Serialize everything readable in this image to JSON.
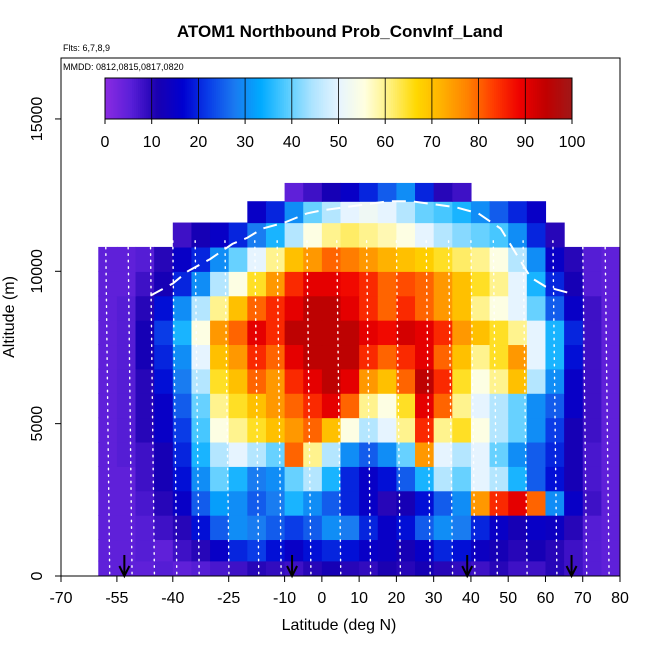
{
  "chart_data": {
    "type": "heatmap",
    "title": "ATOM1 Northbound Prob_ConvInf_Land",
    "subtitle_flights": "Flts: 6,7,8,9",
    "subtitle_dates": "MMDD: 0812,0815,0817,0820",
    "xlabel": "Latitude (deg N)",
    "ylabel": "Altitude (m)",
    "xlim": [
      -70,
      80
    ],
    "ylim": [
      0,
      17000
    ],
    "x_ticks": [
      -70,
      -55,
      -40,
      -25,
      -10,
      0,
      10,
      20,
      30,
      40,
      50,
      60,
      70,
      80
    ],
    "x_tick_labels": [
      "-70",
      "-55",
      "-40",
      "-25",
      "-10",
      "0",
      "10",
      "20",
      "30",
      "40",
      "50",
      "60",
      "70",
      "80"
    ],
    "y_ticks": [
      0,
      5000,
      10000,
      15000
    ],
    "y_tick_labels": [
      "0",
      "5000",
      "10000",
      "15000"
    ],
    "colorbar": {
      "range": [
        0,
        100
      ],
      "ticks": [
        0,
        10,
        20,
        30,
        40,
        50,
        60,
        70,
        80,
        90,
        100
      ],
      "tick_labels": [
        "0",
        "10",
        "20",
        "30",
        "40",
        "50",
        "60",
        "70",
        "80",
        "90",
        "100"
      ],
      "colors": [
        "#8b2be2",
        "#5a1fd8",
        "#1a00b0",
        "#0000d0",
        "#0a3ee8",
        "#1a7af0",
        "#00aaff",
        "#55ccff",
        "#aee4ff",
        "#e6f4ff",
        "#ffffe0",
        "#fff07a",
        "#ffd800",
        "#ffb000",
        "#ff8000",
        "#ff3a00",
        "#ee0000",
        "#c00000",
        "#a01818"
      ]
    },
    "grid_z_rows_bottom_to_top": [
      [
        5,
        5,
        5,
        6,
        5,
        6,
        7,
        8,
        10,
        9,
        8,
        10,
        12,
        10,
        9,
        11,
        10,
        12,
        10,
        9,
        8,
        10,
        8,
        8,
        10,
        8,
        6,
        5
      ],
      [
        5,
        5,
        6,
        5,
        8,
        10,
        15,
        20,
        22,
        18,
        15,
        18,
        20,
        18,
        15,
        14,
        12,
        15,
        20,
        18,
        14,
        12,
        10,
        12,
        10,
        8,
        6,
        5
      ],
      [
        5,
        5,
        6,
        8,
        10,
        18,
        25,
        30,
        28,
        25,
        22,
        25,
        30,
        28,
        20,
        15,
        18,
        25,
        30,
        28,
        20,
        15,
        12,
        15,
        14,
        10,
        6,
        5
      ],
      [
        5,
        5,
        7,
        10,
        15,
        25,
        32,
        30,
        25,
        28,
        35,
        30,
        25,
        20,
        15,
        10,
        12,
        18,
        25,
        30,
        75,
        85,
        90,
        80,
        30,
        15,
        8,
        5
      ],
      [
        5,
        5,
        8,
        12,
        18,
        30,
        40,
        35,
        28,
        30,
        40,
        45,
        35,
        20,
        15,
        18,
        25,
        35,
        45,
        40,
        50,
        45,
        35,
        25,
        18,
        12,
        7,
        5
      ],
      [
        5,
        6,
        8,
        12,
        20,
        35,
        45,
        50,
        45,
        40,
        80,
        60,
        45,
        30,
        25,
        30,
        40,
        75,
        50,
        45,
        50,
        40,
        30,
        25,
        20,
        12,
        7,
        5
      ],
      [
        5,
        6,
        10,
        15,
        22,
        38,
        55,
        60,
        65,
        70,
        75,
        80,
        70,
        55,
        45,
        50,
        60,
        85,
        60,
        65,
        55,
        45,
        40,
        30,
        22,
        12,
        8,
        5
      ],
      [
        5,
        6,
        10,
        15,
        25,
        40,
        60,
        65,
        70,
        75,
        80,
        85,
        90,
        80,
        60,
        55,
        65,
        90,
        80,
        60,
        50,
        45,
        40,
        30,
        25,
        15,
        8,
        5
      ],
      [
        5,
        6,
        10,
        18,
        28,
        45,
        65,
        70,
        80,
        75,
        85,
        90,
        95,
        90,
        75,
        70,
        80,
        95,
        85,
        65,
        55,
        60,
        70,
        45,
        30,
        15,
        8,
        5
      ],
      [
        5,
        6,
        12,
        20,
        30,
        50,
        70,
        75,
        85,
        80,
        90,
        95,
        95,
        95,
        85,
        80,
        85,
        90,
        80,
        70,
        60,
        65,
        75,
        50,
        35,
        18,
        8,
        5
      ],
      [
        5,
        6,
        12,
        22,
        35,
        55,
        75,
        80,
        90,
        85,
        95,
        95,
        95,
        95,
        90,
        88,
        92,
        90,
        85,
        75,
        70,
        65,
        60,
        50,
        35,
        20,
        8,
        5
      ],
      [
        5,
        6,
        10,
        18,
        30,
        45,
        60,
        70,
        80,
        85,
        90,
        95,
        95,
        90,
        85,
        80,
        85,
        80,
        75,
        70,
        60,
        55,
        50,
        40,
        25,
        15,
        8,
        5
      ],
      [
        5,
        5,
        8,
        12,
        20,
        30,
        45,
        55,
        65,
        75,
        85,
        90,
        90,
        88,
        85,
        80,
        82,
        80,
        75,
        70,
        65,
        60,
        50,
        35,
        20,
        12,
        6,
        5
      ],
      [
        5,
        5,
        6,
        10,
        15,
        20,
        30,
        40,
        50,
        60,
        70,
        75,
        80,
        78,
        75,
        72,
        70,
        68,
        65,
        62,
        60,
        55,
        45,
        30,
        15,
        10,
        6,
        5
      ],
      [
        -1,
        -1,
        -1,
        -1,
        8,
        12,
        15,
        20,
        28,
        35,
        45,
        55,
        60,
        62,
        60,
        58,
        55,
        50,
        45,
        42,
        40,
        38,
        30,
        20,
        10,
        -1,
        -1,
        -1
      ],
      [
        -1,
        -1,
        -1,
        -1,
        -1,
        -1,
        -1,
        -1,
        15,
        20,
        30,
        40,
        45,
        50,
        52,
        50,
        45,
        40,
        38,
        35,
        30,
        25,
        20,
        15,
        -1,
        -1,
        -1,
        -1
      ],
      [
        -1,
        -1,
        -1,
        -1,
        -1,
        -1,
        -1,
        -1,
        -1,
        -1,
        5,
        8,
        12,
        15,
        20,
        25,
        30,
        20,
        10,
        8,
        -1,
        -1,
        -1,
        -1,
        -1,
        -1,
        -1,
        -1
      ]
    ],
    "grid_row_altitude_bins_m": [
      [
        0,
        500
      ],
      [
        500,
        1200
      ],
      [
        1200,
        2000
      ],
      [
        2000,
        2800
      ],
      [
        2800,
        3600
      ],
      [
        3600,
        4400
      ],
      [
        4400,
        5200
      ],
      [
        5200,
        6000
      ],
      [
        6000,
        6800
      ],
      [
        6800,
        7600
      ],
      [
        7600,
        8400
      ],
      [
        8400,
        9200
      ],
      [
        9200,
        10000
      ],
      [
        10000,
        10800
      ],
      [
        10800,
        11600
      ],
      [
        11600,
        12300
      ],
      [
        12300,
        12900
      ]
    ],
    "grid_col_latitude_range": [
      -60,
      80
    ],
    "tropopause_line": [
      [
        -46,
        9200
      ],
      [
        -40,
        9600
      ],
      [
        -36,
        10000
      ],
      [
        -30,
        10400
      ],
      [
        -24,
        10900
      ],
      [
        -20,
        11100
      ],
      [
        -16,
        11400
      ],
      [
        -10,
        11600
      ],
      [
        -4,
        11900
      ],
      [
        0,
        12000
      ],
      [
        6,
        12100
      ],
      [
        12,
        12200
      ],
      [
        18,
        12300
      ],
      [
        24,
        12300
      ],
      [
        30,
        12200
      ],
      [
        36,
        12100
      ],
      [
        42,
        11900
      ],
      [
        48,
        11400
      ],
      [
        52,
        10600
      ],
      [
        56,
        9800
      ],
      [
        60,
        9500
      ],
      [
        66,
        9300
      ]
    ],
    "flight_profile_latitudes": [
      -62,
      -58,
      -52,
      -46,
      -40,
      -34,
      -26,
      -18,
      -12,
      -4,
      4,
      12,
      20,
      28,
      34,
      40,
      46,
      54,
      62,
      70,
      76
    ],
    "arrow_latitudes": [
      -53,
      -8,
      39,
      67
    ],
    "legend": "colorbar top, inside plot"
  }
}
